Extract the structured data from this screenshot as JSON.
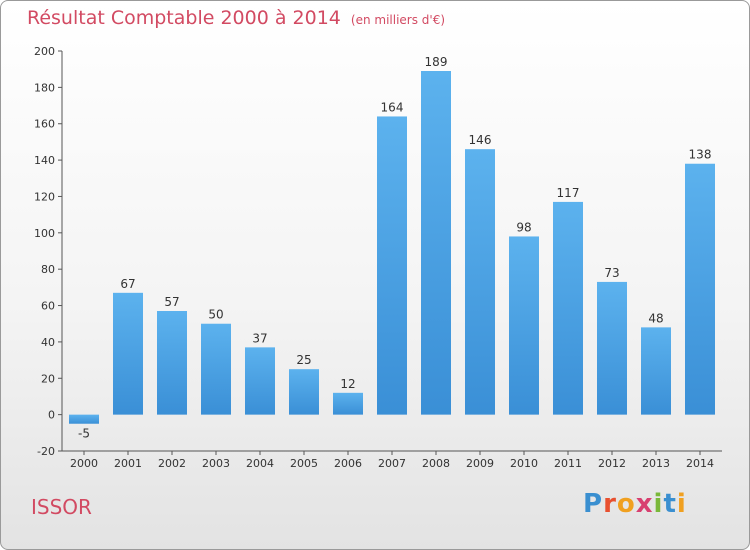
{
  "chart_data": {
    "type": "bar",
    "title": "Résultat Comptable 2000 à 2014",
    "subtitle": "(en milliers d'€)",
    "categories": [
      "2000",
      "2001",
      "2002",
      "2003",
      "2004",
      "2005",
      "2006",
      "2007",
      "2008",
      "2009",
      "2010",
      "2011",
      "2012",
      "2013",
      "2014"
    ],
    "values": [
      -5,
      67,
      57,
      50,
      37,
      25,
      12,
      164,
      189,
      146,
      98,
      117,
      73,
      48,
      138
    ],
    "data_labels": [
      "-5",
      "67",
      "57",
      "50",
      "37",
      "25",
      "12",
      "164",
      "189",
      "146",
      "98",
      "117",
      "73",
      "48",
      "138"
    ],
    "y_ticks": [
      -20,
      0,
      20,
      40,
      60,
      80,
      100,
      120,
      140,
      160,
      180,
      200
    ],
    "ylim": [
      -20,
      200
    ],
    "grid": false,
    "xlabel": "",
    "ylabel": "",
    "bar_color": "#3a8fd6"
  },
  "commune": "ISSOR",
  "logo": {
    "letters": [
      "P",
      "r",
      "o",
      "x",
      "i",
      "t",
      "i"
    ]
  }
}
